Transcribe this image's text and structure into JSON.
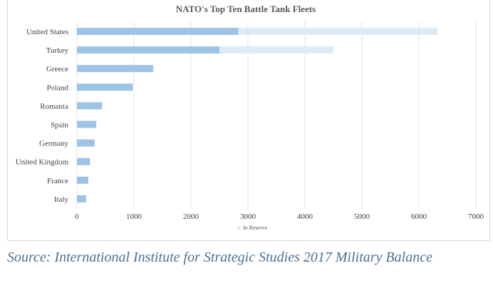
{
  "chart_data": {
    "type": "bar",
    "orientation": "horizontal",
    "stacked": true,
    "title": "NATO's Top Ten Battle Tank Fleets",
    "categories": [
      "United States",
      "Turkey",
      "Greece",
      "Poland",
      "Romania",
      "Spain",
      "Germany",
      "United Kingdom",
      "France",
      "Italy"
    ],
    "series": [
      {
        "name": "",
        "color": "#9dc3e6",
        "values": [
          2830,
          2500,
          1340,
          980,
          440,
          340,
          310,
          230,
          200,
          160
        ]
      },
      {
        "name": "In Reserve",
        "color": "#ddebf7",
        "values": [
          3500,
          2000,
          0,
          0,
          0,
          0,
          0,
          0,
          0,
          0
        ]
      }
    ],
    "xlim": [
      0,
      7000
    ],
    "xticks": [
      0,
      1000,
      2000,
      3000,
      4000,
      5000,
      6000,
      7000
    ],
    "grid": "vertical",
    "legend": "bottom-center"
  },
  "source": "Source: International Institute for Strategic Studies 2017 Military Balance"
}
